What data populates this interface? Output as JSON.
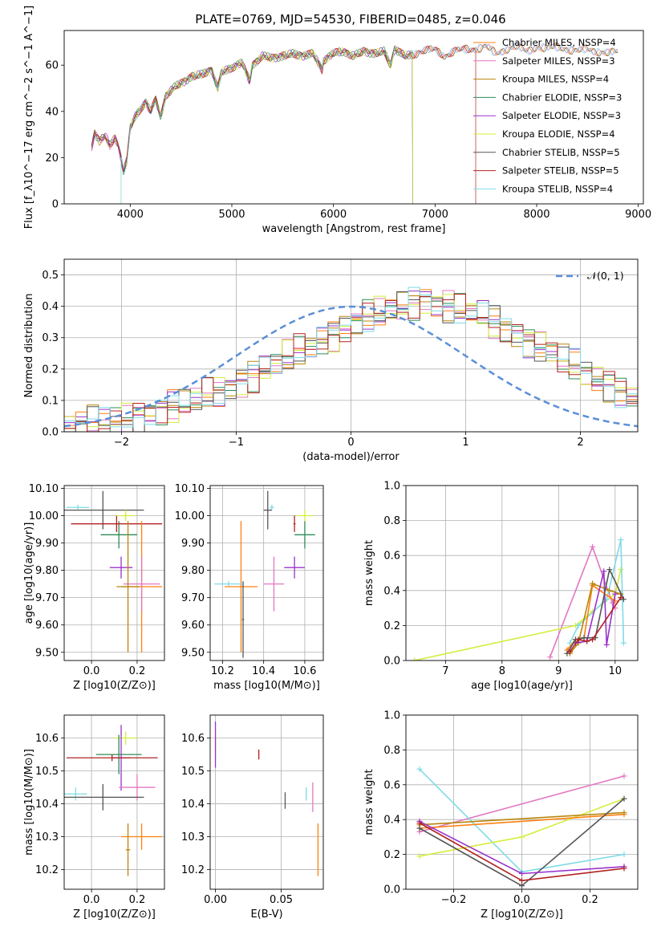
{
  "title": "PLATE=0769, MJD=54530, FIBERID=0485, z=0.046",
  "colors": {
    "chabrier_miles": "#ff7f0e",
    "salpeter_miles": "#e377c2",
    "kroupa_miles": "#b8860b",
    "chabrier_elodie": "#2e8b57",
    "salpeter_elodie": "#9932cc",
    "kroupa_elodie": "#d4ed3c",
    "chabrier_stelib": "#555555",
    "salpeter_stelib": "#b22222",
    "kroupa_stelib": "#7fdbe8",
    "normal": "#5b8fd6"
  },
  "chart_data": [
    {
      "id": "spectrum",
      "type": "line",
      "xlabel": "wavelength [Angstrom, rest frame]",
      "ylabel": "Flux [f_λ10^−17 erg cm^−2 s^−1 A^−1]",
      "xlim": [
        3350,
        9050
      ],
      "ylim": [
        0,
        75
      ],
      "xticks": [
        4000,
        5000,
        6000,
        7000,
        8000,
        9000
      ],
      "yticks": [
        0,
        20,
        40,
        60
      ],
      "grid": false,
      "legend_position": "right",
      "observed": {
        "x": [
          3620,
          3650,
          3700,
          3750,
          3800,
          3850,
          3900,
          3934,
          3968,
          4000,
          4050,
          4100,
          4150,
          4200,
          4250,
          4300,
          4350,
          4400,
          4450,
          4500,
          4600,
          4700,
          4800,
          4861,
          4900,
          5000,
          5100,
          5175,
          5200,
          5300,
          5400,
          5500,
          5600,
          5700,
          5800,
          5890,
          5900,
          6000,
          6100,
          6200,
          6300,
          6400,
          6500,
          6563,
          6600,
          6700,
          6800,
          6900,
          7000,
          7100,
          7200,
          7300,
          7400,
          7500,
          7600,
          7700,
          7800,
          7900,
          8000,
          8100,
          8200,
          8300,
          8400,
          8500,
          8600,
          8700,
          8800
        ],
        "y": [
          24,
          31,
          27,
          30,
          25,
          29,
          22,
          14,
          19,
          33,
          38,
          41,
          44,
          40,
          45,
          38,
          47,
          49,
          51,
          52,
          55,
          56,
          58,
          50,
          57,
          59,
          61,
          53,
          60,
          64,
          63,
          64,
          65,
          64,
          65,
          58,
          62,
          65,
          66,
          64,
          66,
          65,
          66,
          60,
          67,
          64,
          65,
          66,
          67,
          64,
          66,
          67,
          67,
          68,
          65,
          67,
          68,
          66,
          68,
          67,
          68,
          67,
          66,
          67,
          66,
          65,
          66
        ]
      },
      "series": [
        {
          "name": "Chabrier MILES, N_SSP=4",
          "color_key": "chabrier_miles"
        },
        {
          "name": "Salpeter MILES, N_SSP=3",
          "color_key": "salpeter_miles"
        },
        {
          "name": "Kroupa MILES, N_SSP=4",
          "color_key": "kroupa_miles",
          "cutoff": 6780
        },
        {
          "name": "Chabrier ELODIE, N_SSP=3",
          "color_key": "chabrier_elodie",
          "cutoff": 6780
        },
        {
          "name": "Salpeter ELODIE, N_SSP=3",
          "color_key": "salpeter_elodie",
          "cutoff": 6780
        },
        {
          "name": "Kroupa ELODIE, N_SSP=4",
          "color_key": "kroupa_elodie",
          "start": 3910,
          "cutoff": 6780
        },
        {
          "name": "Chabrier STELIB, N_SSP=5",
          "color_key": "chabrier_stelib"
        },
        {
          "name": "Salpeter STELIB, N_SSP=5",
          "color_key": "salpeter_stelib",
          "cutoff": 7400
        },
        {
          "name": "Kroupa STELIB, N_SSP=4",
          "color_key": "kroupa_stelib",
          "start": 3910
        }
      ]
    },
    {
      "id": "residuals",
      "type": "line",
      "xlabel": "(data-model)/error",
      "ylabel": "Normed distribution",
      "xlim": [
        -2.5,
        2.5
      ],
      "ylim": [
        0,
        0.55
      ],
      "xticks": [
        -2,
        -1,
        0,
        1,
        2
      ],
      "yticks": [
        0.0,
        0.1,
        0.2,
        0.3,
        0.4,
        0.5
      ],
      "grid": true,
      "legend": "𝒩(0, 1)",
      "legend_position": "top-right",
      "bin_width": 0.1,
      "base_hist": [
        0.02,
        0.02,
        0.03,
        0.03,
        0.04,
        0.04,
        0.05,
        0.06,
        0.07,
        0.08,
        0.09,
        0.1,
        0.12,
        0.13,
        0.14,
        0.16,
        0.18,
        0.2,
        0.22,
        0.24,
        0.26,
        0.27,
        0.29,
        0.31,
        0.33,
        0.35,
        0.37,
        0.38,
        0.39,
        0.4,
        0.41,
        0.42,
        0.41,
        0.4,
        0.39,
        0.38,
        0.37,
        0.35,
        0.33,
        0.31,
        0.29,
        0.27,
        0.25,
        0.23,
        0.21,
        0.19,
        0.17,
        0.15,
        0.13,
        0.11,
        0.1
      ]
    },
    {
      "id": "age_vs_Z",
      "type": "scatter",
      "xlabel": "Z [log10(Z/Z⊙)]",
      "ylabel": "age [log10(age/yr)]",
      "xlim": [
        -0.12,
        0.32
      ],
      "ylim": [
        9.47,
        10.11
      ],
      "xticks": [
        0.0,
        0.2
      ],
      "yticks": [
        9.5,
        9.6,
        9.7,
        9.8,
        9.9,
        10.0,
        10.1
      ],
      "grid": true,
      "points": [
        {
          "color_key": "kroupa_stelib",
          "x": -0.06,
          "y": 10.03,
          "xerr": 0.05,
          "yerr": 0.01
        },
        {
          "color_key": "chabrier_stelib",
          "x": 0.05,
          "y": 10.02,
          "xerr": 0.18,
          "yerr": 0.07
        },
        {
          "color_key": "chabrier_elodie",
          "x": 0.12,
          "y": 9.93,
          "xerr": 0.08,
          "yerr": 0.05
        },
        {
          "color_key": "salpeter_stelib",
          "x": 0.11,
          "y": 9.97,
          "xerr": 0.2,
          "yerr": 0.03
        },
        {
          "color_key": "kroupa_elodie",
          "x": 0.15,
          "y": 10.0,
          "xerr": 0.04,
          "yerr": 0.02
        },
        {
          "color_key": "salpeter_elodie",
          "x": 0.13,
          "y": 9.81,
          "xerr": 0.05,
          "yerr": 0.04
        },
        {
          "color_key": "chabrier_miles",
          "x": 0.22,
          "y": 9.74,
          "xerr": 0.09,
          "yerr": 0.24
        },
        {
          "color_key": "salpeter_miles",
          "x": 0.22,
          "y": 9.75,
          "xerr": 0.08,
          "yerr": 0.1
        },
        {
          "color_key": "kroupa_miles",
          "x": 0.16,
          "y": 9.74,
          "xerr": 0.05,
          "yerr": 0.24
        }
      ]
    },
    {
      "id": "age_vs_mass",
      "type": "scatter",
      "xlabel": "mass [log10(M/M⊙)]",
      "xlim": [
        10.14,
        10.69
      ],
      "ylim": [
        9.47,
        10.11
      ],
      "xticks": [
        10.2,
        10.4,
        10.6
      ],
      "yticks": [
        9.5,
        9.6,
        9.7,
        9.8,
        9.9,
        10.0,
        10.1
      ],
      "grid": true,
      "points": [
        {
          "color_key": "kroupa_stelib",
          "x": 10.44,
          "y": 10.03,
          "xerr": 0.01,
          "yerr": 0.01
        },
        {
          "color_key": "chabrier_stelib",
          "x": 10.42,
          "y": 10.02,
          "xerr": 0.02,
          "yerr": 0.07
        },
        {
          "color_key": "chabrier_elodie",
          "x": 10.6,
          "y": 9.93,
          "xerr": 0.05,
          "yerr": 0.05
        },
        {
          "color_key": "salpeter_stelib",
          "x": 10.55,
          "y": 9.97,
          "xerr": 0.005,
          "yerr": 0.03
        },
        {
          "color_key": "kroupa_elodie",
          "x": 10.6,
          "y": 10.0,
          "xerr": 0.04,
          "yerr": 0.02
        },
        {
          "color_key": "salpeter_elodie",
          "x": 10.55,
          "y": 9.81,
          "xerr": 0.05,
          "yerr": 0.04
        },
        {
          "color_key": "chabrier_miles",
          "x": 10.29,
          "y": 9.74,
          "xerr": 0.08,
          "yerr": 0.24
        },
        {
          "color_key": "salpeter_miles",
          "x": 10.45,
          "y": 9.75,
          "xerr": 0.05,
          "yerr": 0.1
        },
        {
          "color_key": "kroupa_stelib",
          "x": 10.23,
          "y": 9.75,
          "xerr": 0.07,
          "yerr": 0.01
        },
        {
          "color_key": "chabrier_stelib",
          "x": 10.3,
          "y": 9.62,
          "xerr": 0.005,
          "yerr": 0.14
        }
      ]
    },
    {
      "id": "weight_vs_age",
      "type": "line",
      "xlabel": "age [log10(age/yr)]",
      "ylabel": "mass weight",
      "xlim": [
        6.3,
        10.4
      ],
      "ylim": [
        0,
        1
      ],
      "xticks": [
        7,
        8,
        9,
        10
      ],
      "yticks": [
        0.0,
        0.2,
        0.4,
        0.6,
        0.8,
        1.0
      ],
      "grid": true,
      "series": [
        {
          "color_key": "salpeter_miles",
          "x": [
            8.85,
            9.6,
            9.95,
            10.0
          ],
          "y": [
            0.02,
            0.65,
            0.33,
            0.3
          ]
        },
        {
          "color_key": "kroupa_elodie",
          "x": [
            6.45,
            9.3,
            9.6,
            10.0,
            10.1
          ],
          "y": [
            0.0,
            0.2,
            0.28,
            0.38,
            0.52
          ]
        },
        {
          "color_key": "kroupa_stelib",
          "x": [
            9.2,
            9.35,
            9.85,
            10.1,
            10.15
          ],
          "y": [
            0.1,
            0.2,
            0.35,
            0.69,
            0.1
          ]
        },
        {
          "color_key": "chabrier_miles",
          "x": [
            9.15,
            9.3,
            9.45,
            9.6,
            10.0
          ],
          "y": [
            0.06,
            0.12,
            0.13,
            0.43,
            0.34
          ]
        },
        {
          "color_key": "kroupa_miles",
          "x": [
            9.2,
            9.35,
            9.6,
            9.9,
            10.1
          ],
          "y": [
            0.04,
            0.1,
            0.44,
            0.4,
            0.38
          ]
        },
        {
          "color_key": "salpeter_elodie",
          "x": [
            9.3,
            9.5,
            9.8,
            9.85,
            10.0
          ],
          "y": [
            0.1,
            0.11,
            0.51,
            0.09,
            0.38
          ]
        },
        {
          "color_key": "chabrier_stelib",
          "x": [
            9.15,
            9.3,
            9.45,
            9.65,
            9.9,
            10.15
          ],
          "y": [
            0.04,
            0.12,
            0.13,
            0.13,
            0.52,
            0.35
          ]
        },
        {
          "color_key": "salpeter_stelib",
          "x": [
            9.2,
            9.35,
            9.5,
            9.6,
            10.1
          ],
          "y": [
            0.05,
            0.12,
            0.11,
            0.12,
            0.36
          ]
        }
      ]
    },
    {
      "id": "mass_vs_Z",
      "type": "scatter",
      "xlabel": "Z [log10(Z/Z⊙)]",
      "ylabel": "mass [log10(M/M⊙)]",
      "xlim": [
        -0.12,
        0.32
      ],
      "ylim": [
        10.14,
        10.67
      ],
      "xticks": [
        0.0,
        0.2
      ],
      "yticks": [
        10.2,
        10.3,
        10.4,
        10.5,
        10.6
      ],
      "grid": true,
      "points": [
        {
          "color_key": "kroupa_elodie",
          "x": 0.15,
          "y": 10.6,
          "xerr": 0.05,
          "yerr": 0.02
        },
        {
          "color_key": "chabrier_elodie",
          "x": 0.12,
          "y": 10.55,
          "xerr": 0.1,
          "yerr": 0.06
        },
        {
          "color_key": "salpeter_elodie",
          "x": 0.13,
          "y": 10.54,
          "xerr": 0.04,
          "yerr": 0.1
        },
        {
          "color_key": "salpeter_stelib",
          "x": 0.09,
          "y": 10.54,
          "xerr": 0.2,
          "yerr": 0.01
        },
        {
          "color_key": "salpeter_miles",
          "x": 0.2,
          "y": 10.45,
          "xerr": 0.08,
          "yerr": 0.04
        },
        {
          "color_key": "kroupa_stelib",
          "x": -0.07,
          "y": 10.43,
          "xerr": 0.05,
          "yerr": 0.02
        },
        {
          "color_key": "chabrier_stelib",
          "x": 0.05,
          "y": 10.42,
          "xerr": 0.18,
          "yerr": 0.04
        },
        {
          "color_key": "chabrier_miles",
          "x": 0.22,
          "y": 10.3,
          "xerr": 0.09,
          "yerr": 0.04
        },
        {
          "color_key": "kroupa_miles",
          "x": 0.16,
          "y": 10.26,
          "xerr": 0.01,
          "yerr": 0.08
        }
      ]
    },
    {
      "id": "mass_vs_ebv",
      "type": "scatter",
      "xlabel": "E(B-V)",
      "xlim": [
        -0.004,
        0.082
      ],
      "ylim": [
        10.14,
        10.67
      ],
      "xticks": [
        0.0,
        0.05
      ],
      "yticks": [
        10.2,
        10.3,
        10.4,
        10.5,
        10.6
      ],
      "grid": true,
      "points": [
        {
          "color_key": "kroupa_elodie",
          "x": 0.0,
          "y": 10.58,
          "yerr": 0.04
        },
        {
          "color_key": "salpeter_elodie",
          "x": 0.0,
          "y": 10.58,
          "yerr": 0.07
        },
        {
          "color_key": "salpeter_stelib",
          "x": 0.033,
          "y": 10.55,
          "yerr": 0.015
        },
        {
          "color_key": "chabrier_stelib",
          "x": 0.053,
          "y": 10.41,
          "yerr": 0.025
        },
        {
          "color_key": "kroupa_stelib",
          "x": 0.069,
          "y": 10.43,
          "yerr": 0.02
        },
        {
          "color_key": "salpeter_miles",
          "x": 0.074,
          "y": 10.42,
          "yerr": 0.045
        },
        {
          "color_key": "chabrier_miles",
          "x": 0.078,
          "y": 10.26,
          "yerr": 0.08
        }
      ]
    },
    {
      "id": "weight_vs_Z",
      "type": "line",
      "xlabel": "Z [log10(Z/Z⊙)]",
      "ylabel": "mass weight",
      "xlim": [
        -0.34,
        0.34
      ],
      "ylim": [
        0,
        1
      ],
      "xticks": [
        -0.2,
        0.0,
        0.2
      ],
      "yticks": [
        0.0,
        0.2,
        0.4,
        0.6,
        0.8,
        1.0
      ],
      "grid": true,
      "series": [
        {
          "color_key": "salpeter_miles",
          "x": [
            -0.3,
            0.3
          ],
          "y": [
            0.33,
            0.65
          ]
        },
        {
          "color_key": "kroupa_stelib",
          "x": [
            -0.3,
            0.0,
            0.3
          ],
          "y": [
            0.69,
            0.1,
            0.2
          ]
        },
        {
          "color_key": "kroupa_elodie",
          "x": [
            -0.3,
            0.0,
            0.3
          ],
          "y": [
            0.19,
            0.3,
            0.52
          ]
        },
        {
          "color_key": "chabrier_miles",
          "x": [
            -0.3,
            0.3
          ],
          "y": [
            0.35,
            0.43
          ]
        },
        {
          "color_key": "kroupa_miles",
          "x": [
            -0.3,
            0.3
          ],
          "y": [
            0.37,
            0.44
          ]
        },
        {
          "color_key": "chabrier_stelib",
          "x": [
            -0.3,
            0.0,
            0.3
          ],
          "y": [
            0.35,
            0.02,
            0.52
          ]
        },
        {
          "color_key": "salpeter_elodie",
          "x": [
            -0.3,
            0.0,
            0.3
          ],
          "y": [
            0.39,
            0.09,
            0.13
          ]
        },
        {
          "color_key": "salpeter_stelib",
          "x": [
            -0.3,
            0.0,
            0.3
          ],
          "y": [
            0.38,
            0.05,
            0.12
          ]
        }
      ]
    }
  ]
}
